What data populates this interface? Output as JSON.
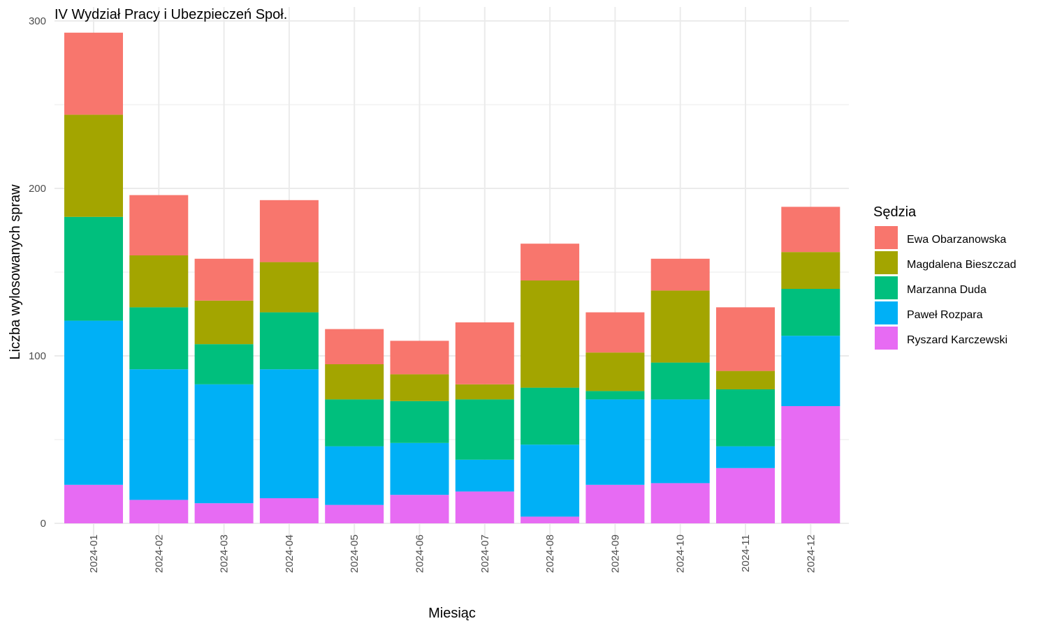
{
  "chart_data": {
    "type": "bar",
    "stacked": true,
    "title": "IV Wydział Pracy i Ubezpieczeń Społ.",
    "xlabel": "Miesiąc",
    "ylabel": "Liczba wylosowanych spraw",
    "ylim": [
      0,
      300
    ],
    "yticks": [
      0,
      100,
      200,
      300
    ],
    "grid": true,
    "legend": {
      "title": "Sędzia",
      "position": "right"
    },
    "categories": [
      "2024-01",
      "2024-02",
      "2024-03",
      "2024-04",
      "2024-05",
      "2024-06",
      "2024-07",
      "2024-08",
      "2024-09",
      "2024-10",
      "2024-11",
      "2024-12"
    ],
    "series": [
      {
        "name": "Ryszard Karczewski",
        "color": "#E76BF3",
        "values": [
          23,
          14,
          12,
          15,
          11,
          17,
          19,
          4,
          23,
          24,
          33,
          70
        ]
      },
      {
        "name": "Paweł Rozpara",
        "color": "#00B0F6",
        "values": [
          98,
          78,
          71,
          77,
          35,
          31,
          19,
          43,
          51,
          50,
          13,
          42
        ]
      },
      {
        "name": "Marzanna Duda",
        "color": "#00BF7D",
        "values": [
          62,
          37,
          24,
          34,
          28,
          25,
          36,
          34,
          5,
          22,
          34,
          28
        ]
      },
      {
        "name": "Magdalena Bieszczad",
        "color": "#A3A500",
        "values": [
          61,
          31,
          26,
          30,
          21,
          16,
          9,
          64,
          23,
          43,
          11,
          22
        ]
      },
      {
        "name": "Ewa Obarzanowska",
        "color": "#F8766D",
        "values": [
          49,
          36,
          25,
          37,
          21,
          20,
          37,
          22,
          24,
          19,
          38,
          27
        ]
      }
    ]
  }
}
